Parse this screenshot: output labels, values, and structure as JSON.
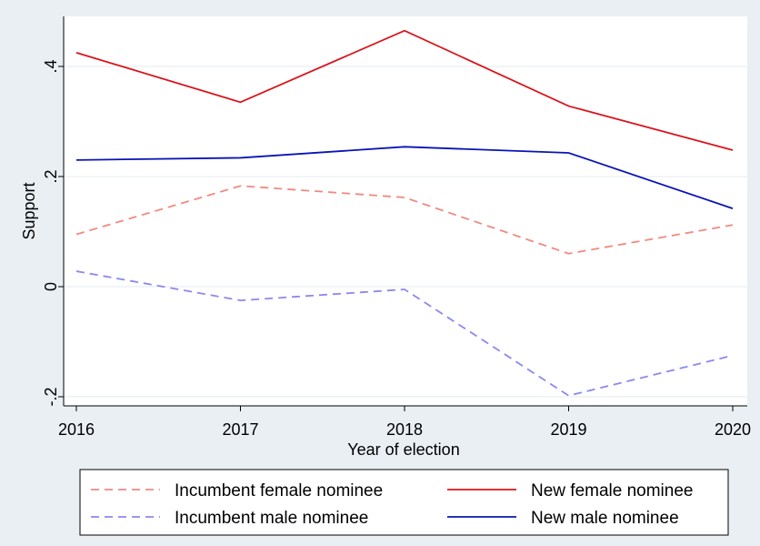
{
  "chart_data": {
    "type": "line",
    "x": [
      2016,
      2017,
      2018,
      2019,
      2020
    ],
    "xlabel": "Year of election",
    "ylabel": "Support",
    "xlim": [
      2016,
      2020
    ],
    "ylim": [
      -0.2,
      0.5
    ],
    "yticks": [
      -0.2,
      0,
      0.2,
      0.4
    ],
    "ytick_labels": [
      "-.2",
      "0",
      ".2",
      ".4"
    ],
    "xtick_labels": [
      "2016",
      "2017",
      "2018",
      "2019",
      "2020"
    ],
    "grid": true,
    "legend_position": "bottom",
    "series": [
      {
        "name": "Incumbent female nominee",
        "values": [
          0.095,
          0.183,
          0.162,
          0.06,
          0.112
        ],
        "color": "#f08a80",
        "dashed": true
      },
      {
        "name": "New female nominee",
        "values": [
          0.425,
          0.335,
          0.465,
          0.328,
          0.248
        ],
        "color": "#d9141c",
        "dashed": false
      },
      {
        "name": "Incumbent male nominee",
        "values": [
          0.028,
          -0.025,
          -0.005,
          -0.198,
          -0.125
        ],
        "color": "#8c88f0",
        "dashed": true
      },
      {
        "name": "New male nominee",
        "values": [
          0.23,
          0.234,
          0.254,
          0.243,
          0.142
        ],
        "color": "#0a14b4",
        "dashed": false
      }
    ]
  }
}
